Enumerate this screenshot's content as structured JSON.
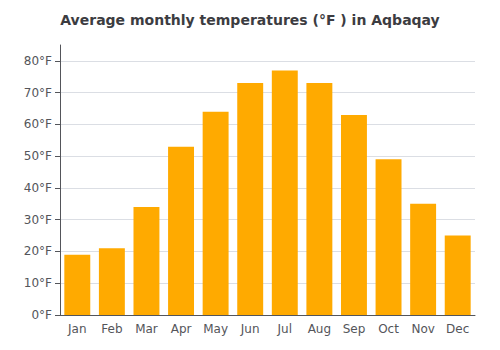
{
  "chart_data": {
    "type": "bar",
    "title": "Average monthly temperatures (°F ) in Aqbaqay",
    "categories": [
      "Jan",
      "Feb",
      "Mar",
      "Apr",
      "May",
      "Jun",
      "Jul",
      "Aug",
      "Sep",
      "Oct",
      "Nov",
      "Dec"
    ],
    "values": [
      19,
      21,
      34,
      53,
      64,
      73,
      77,
      73,
      63,
      49,
      35,
      25
    ],
    "color": "#FFAA00",
    "ylim": [
      0,
      85
    ],
    "yticks": [
      {
        "value": 0,
        "label": "0°F"
      },
      {
        "value": 10,
        "label": "10°F"
      },
      {
        "value": 20,
        "label": "20°F"
      },
      {
        "value": 30,
        "label": "30°F"
      },
      {
        "value": 40,
        "label": "40°F"
      },
      {
        "value": 50,
        "label": "50°F"
      },
      {
        "value": 60,
        "label": "60°F"
      },
      {
        "value": 70,
        "label": "70°F"
      },
      {
        "value": 80,
        "label": "80°F"
      }
    ],
    "grid": true
  }
}
